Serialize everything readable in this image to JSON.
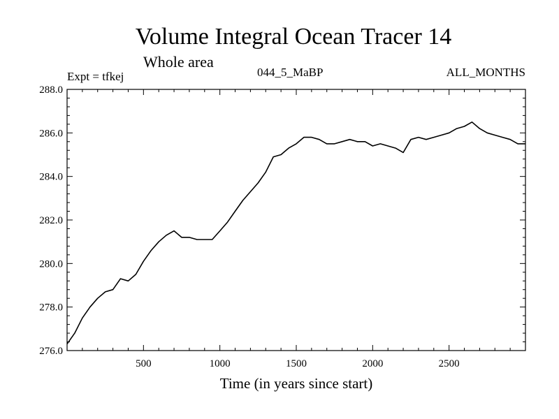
{
  "chart_data": {
    "type": "line",
    "title": "Volume Integral Ocean Tracer 14",
    "subtitle": "Whole area",
    "annotations": {
      "left": "Expt = tfkej",
      "center": "044_5_MaBP",
      "right": "ALL_MONTHS"
    },
    "xlabel": "Time (in years since start)",
    "ylabel": "",
    "xlim": [
      0,
      3000
    ],
    "ylim": [
      276.0,
      288.0
    ],
    "x_ticks": [
      500,
      1000,
      1500,
      2000,
      2500
    ],
    "x_tick_labels": [
      "500",
      "1000",
      "1500",
      "2000",
      "2500"
    ],
    "y_ticks": [
      276.0,
      278.0,
      280.0,
      282.0,
      284.0,
      286.0,
      288.0
    ],
    "y_tick_labels": [
      "276.0",
      "278.0",
      "280.0",
      "282.0",
      "284.0",
      "286.0",
      "288.0"
    ],
    "grid": false,
    "legend": "none",
    "line_color": "#000000",
    "series": [
      {
        "x": [
          0,
          50,
          100,
          150,
          200,
          250,
          300,
          350,
          400,
          450,
          500,
          550,
          600,
          650,
          700,
          750,
          800,
          850,
          900,
          950,
          1000,
          1050,
          1100,
          1150,
          1200,
          1250,
          1300,
          1350,
          1400,
          1450,
          1500,
          1550,
          1600,
          1650,
          1700,
          1750,
          1800,
          1850,
          1900,
          1950,
          2000,
          2050,
          2100,
          2150,
          2200,
          2250,
          2300,
          2350,
          2400,
          2450,
          2500,
          2550,
          2600,
          2650,
          2700,
          2750,
          2800,
          2850,
          2900,
          2950,
          3000
        ],
        "values": [
          276.3,
          276.8,
          277.5,
          278.0,
          278.4,
          278.7,
          278.8,
          279.3,
          279.2,
          279.5,
          280.1,
          280.6,
          281.0,
          281.3,
          281.5,
          281.2,
          281.2,
          281.1,
          281.1,
          281.1,
          281.5,
          281.9,
          282.4,
          282.9,
          283.3,
          283.7,
          284.2,
          284.9,
          285.0,
          285.3,
          285.5,
          285.8,
          285.8,
          285.7,
          285.5,
          285.5,
          285.6,
          285.7,
          285.6,
          285.6,
          285.4,
          285.5,
          285.4,
          285.3,
          285.1,
          285.7,
          285.8,
          285.7,
          285.8,
          285.9,
          286.0,
          286.2,
          286.3,
          286.5,
          286.2,
          286.0,
          285.9,
          285.8,
          285.7,
          285.5,
          285.5
        ]
      }
    ]
  }
}
